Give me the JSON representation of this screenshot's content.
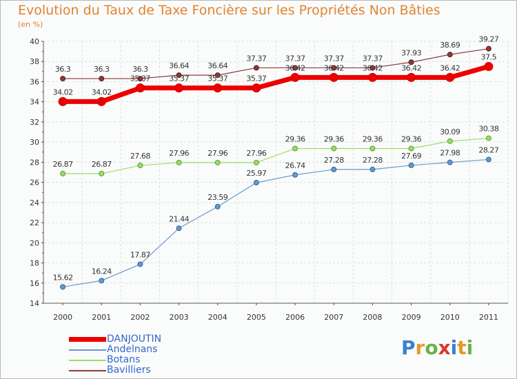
{
  "header": {
    "title": "Evolution du Taux de Taxe Foncière sur les Propriétés Non Bâties",
    "subtitle": "(en %)"
  },
  "logo": {
    "letters": [
      "P",
      "r",
      "o",
      "x",
      "i",
      "t",
      "i"
    ],
    "colors": [
      "#3a7fd0",
      "#e39a2a",
      "#6ab04c",
      "#d93a2b",
      "#3a7fd0",
      "#e39a2a",
      "#6ab04c"
    ]
  },
  "chart_data": {
    "type": "line",
    "x": [
      "2000",
      "2001",
      "2002",
      "2003",
      "2004",
      "2005",
      "2006",
      "2007",
      "2008",
      "2009",
      "2010",
      "2011"
    ],
    "ylim": [
      14,
      40
    ],
    "yticks": [
      "14",
      "16",
      "18",
      "20",
      "22",
      "24",
      "26",
      "28",
      "30",
      "32",
      "34",
      "36",
      "38",
      "40"
    ],
    "grid": true,
    "legend_position": "bottom-left",
    "series": [
      {
        "name": "DANJOUTIN",
        "color": "#ee0000",
        "values": [
          34.02,
          34.02,
          35.37,
          35.37,
          35.37,
          35.37,
          36.42,
          36.42,
          36.42,
          36.42,
          36.42,
          37.5
        ],
        "labels": [
          "34.02",
          "34.02",
          "35.37",
          "35.37",
          "35.37",
          "35.37",
          "36.42",
          "36.42",
          "36.42",
          "36.42",
          "36.42",
          "37.5"
        ]
      },
      {
        "name": "Andelnans",
        "color": "#6699cc",
        "values": [
          15.62,
          16.24,
          17.87,
          21.44,
          23.59,
          25.97,
          26.74,
          27.28,
          27.28,
          27.69,
          27.98,
          28.27
        ],
        "labels": [
          "15.62",
          "16.24",
          "17.87",
          "21.44",
          "23.59",
          "25.97",
          "26.74",
          "27.28",
          "27.28",
          "27.69",
          "27.98",
          "28.27"
        ]
      },
      {
        "name": "Botans",
        "color": "#99dd66",
        "values": [
          26.87,
          26.87,
          27.68,
          27.96,
          27.96,
          27.96,
          29.36,
          29.36,
          29.36,
          29.36,
          30.09,
          30.38
        ],
        "labels": [
          "26.87",
          "26.87",
          "27.68",
          "27.96",
          "27.96",
          "27.96",
          "29.36",
          "29.36",
          "29.36",
          "29.36",
          "30.09",
          "30.38"
        ]
      },
      {
        "name": "Bavilliers",
        "color": "#8b3a3a",
        "values": [
          36.3,
          36.3,
          36.3,
          36.64,
          36.64,
          37.37,
          37.37,
          37.37,
          37.37,
          37.93,
          38.69,
          39.27
        ],
        "labels": [
          "36.3",
          "36.3",
          "36.3",
          "36.64",
          "36.64",
          "37.37",
          "37.37",
          "37.37",
          "37.37",
          "37.93",
          "38.69",
          "39.27"
        ]
      }
    ]
  }
}
